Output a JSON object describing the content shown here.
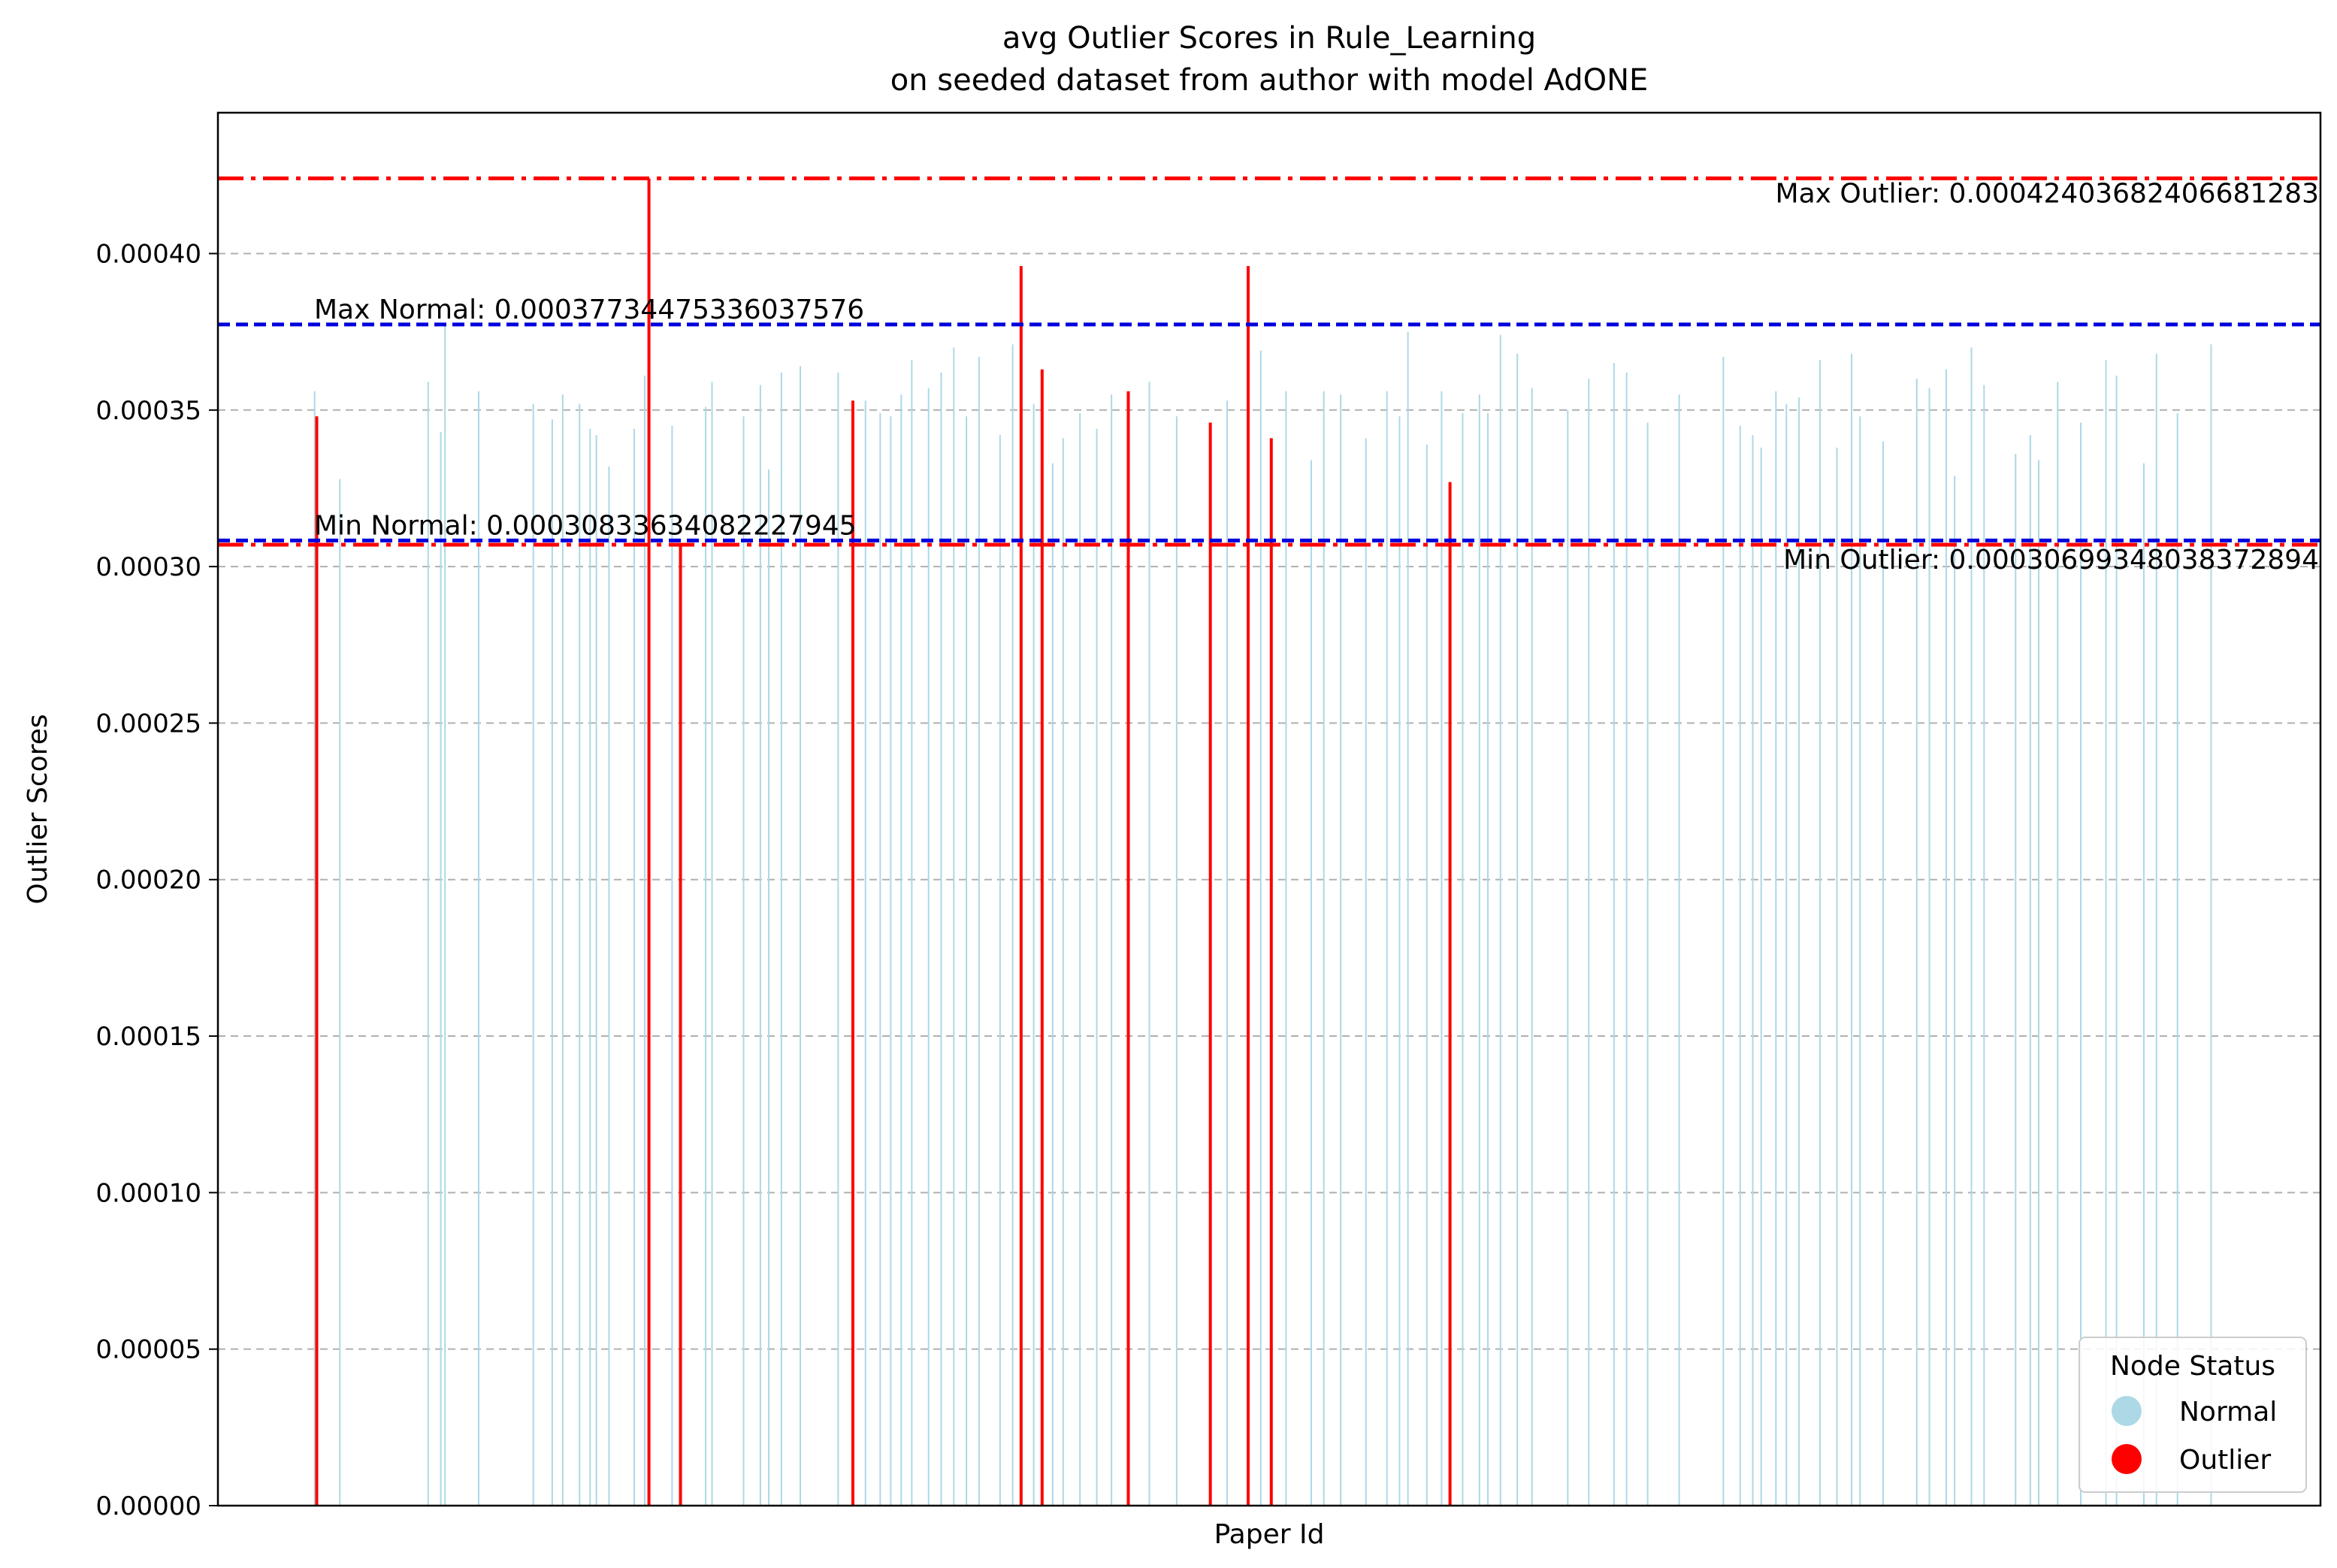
{
  "chart_data": {
    "type": "bar",
    "title_line1": "avg Outlier Scores in Rule_Learning",
    "title_line2": "on seeded dataset from author with model AdONE",
    "xlabel": "Paper Id",
    "ylabel": "Outlier Scores",
    "ylim": [
      0,
      0.000445
    ],
    "yticks": [
      "0.00000",
      "0.00005",
      "0.00010",
      "0.00015",
      "0.00020",
      "0.00025",
      "0.00030",
      "0.00035",
      "0.00040"
    ],
    "grid": "y-dashed",
    "legend": {
      "title": "Node Status",
      "placement": "lower-right",
      "entries": [
        {
          "label": "Normal",
          "color": "#add8e6"
        },
        {
          "label": "Outlier",
          "color": "#ff0000"
        }
      ]
    },
    "reference_lines": [
      {
        "label": "Max Outlier: 0.00042403682406681283",
        "value": 0.0004240368240668128,
        "color": "#ff0000",
        "style": "dashdot"
      },
      {
        "label": "Max Normal: 0.00037734475336037576",
        "value": 0.00037734475336037576,
        "color": "#0000dd",
        "style": "dashed"
      },
      {
        "label": "Min Normal: 0.00030833634082227945",
        "value": 0.00030833634082227945,
        "color": "#0000dd",
        "style": "dashed"
      },
      {
        "label": "Min Outlier: 0.00030699348038372894",
        "value": 0.0003069934803837289,
        "color": "#ff0000",
        "style": "dashdot"
      }
    ],
    "outlier_bars": [
      {
        "pos": 47,
        "value": 0.000348
      },
      {
        "pos": 205,
        "value": 0.000424
      },
      {
        "pos": 220,
        "value": 0.000307
      },
      {
        "pos": 302,
        "value": 0.000353
      },
      {
        "pos": 382,
        "value": 0.000396
      },
      {
        "pos": 392,
        "value": 0.000363
      },
      {
        "pos": 433,
        "value": 0.000356
      },
      {
        "pos": 472,
        "value": 0.000346
      },
      {
        "pos": 490,
        "value": 0.000396
      },
      {
        "pos": 501,
        "value": 0.000341
      },
      {
        "pos": 586,
        "value": 0.000327
      }
    ],
    "normal_bars": [
      {
        "pos": 46,
        "value": 0.000356
      },
      {
        "pos": 58,
        "value": 0.000328
      },
      {
        "pos": 100,
        "value": 0.000359
      },
      {
        "pos": 106,
        "value": 0.000343
      },
      {
        "pos": 108,
        "value": 0.000377
      },
      {
        "pos": 124,
        "value": 0.000356
      },
      {
        "pos": 150,
        "value": 0.000352
      },
      {
        "pos": 159,
        "value": 0.000347
      },
      {
        "pos": 164,
        "value": 0.000355
      },
      {
        "pos": 172,
        "value": 0.000352
      },
      {
        "pos": 177,
        "value": 0.000344
      },
      {
        "pos": 180,
        "value": 0.000342
      },
      {
        "pos": 186,
        "value": 0.000332
      },
      {
        "pos": 198,
        "value": 0.000344
      },
      {
        "pos": 203,
        "value": 0.000361
      },
      {
        "pos": 216,
        "value": 0.000345
      },
      {
        "pos": 232,
        "value": 0.000351
      },
      {
        "pos": 235,
        "value": 0.000359
      },
      {
        "pos": 250,
        "value": 0.000348
      },
      {
        "pos": 258,
        "value": 0.000358
      },
      {
        "pos": 262,
        "value": 0.000331
      },
      {
        "pos": 268,
        "value": 0.000362
      },
      {
        "pos": 277,
        "value": 0.000364
      },
      {
        "pos": 295,
        "value": 0.000362
      },
      {
        "pos": 308,
        "value": 0.000353
      },
      {
        "pos": 315,
        "value": 0.000349
      },
      {
        "pos": 320,
        "value": 0.000348
      },
      {
        "pos": 325,
        "value": 0.000355
      },
      {
        "pos": 330,
        "value": 0.000366
      },
      {
        "pos": 338,
        "value": 0.000357
      },
      {
        "pos": 344,
        "value": 0.000362
      },
      {
        "pos": 350,
        "value": 0.00037
      },
      {
        "pos": 356,
        "value": 0.000348
      },
      {
        "pos": 362,
        "value": 0.000367
      },
      {
        "pos": 372,
        "value": 0.000342
      },
      {
        "pos": 378,
        "value": 0.000371
      },
      {
        "pos": 388,
        "value": 0.000352
      },
      {
        "pos": 397,
        "value": 0.000333
      },
      {
        "pos": 402,
        "value": 0.000341
      },
      {
        "pos": 410,
        "value": 0.000349
      },
      {
        "pos": 418,
        "value": 0.000344
      },
      {
        "pos": 425,
        "value": 0.000355
      },
      {
        "pos": 443,
        "value": 0.000359
      },
      {
        "pos": 456,
        "value": 0.000348
      },
      {
        "pos": 480,
        "value": 0.000353
      },
      {
        "pos": 496,
        "value": 0.000369
      },
      {
        "pos": 508,
        "value": 0.000356
      },
      {
        "pos": 520,
        "value": 0.000334
      },
      {
        "pos": 526,
        "value": 0.000356
      },
      {
        "pos": 534,
        "value": 0.000355
      },
      {
        "pos": 546,
        "value": 0.000341
      },
      {
        "pos": 556,
        "value": 0.000356
      },
      {
        "pos": 562,
        "value": 0.000348
      },
      {
        "pos": 566,
        "value": 0.000375
      },
      {
        "pos": 575,
        "value": 0.000339
      },
      {
        "pos": 582,
        "value": 0.000356
      },
      {
        "pos": 592,
        "value": 0.000349
      },
      {
        "pos": 600,
        "value": 0.000355
      },
      {
        "pos": 604,
        "value": 0.000349
      },
      {
        "pos": 610,
        "value": 0.000374
      },
      {
        "pos": 618,
        "value": 0.000368
      },
      {
        "pos": 625,
        "value": 0.000357
      },
      {
        "pos": 642,
        "value": 0.00035
      },
      {
        "pos": 652,
        "value": 0.00036
      },
      {
        "pos": 664,
        "value": 0.000365
      },
      {
        "pos": 670,
        "value": 0.000362
      },
      {
        "pos": 680,
        "value": 0.000346
      },
      {
        "pos": 695,
        "value": 0.000355
      },
      {
        "pos": 716,
        "value": 0.000367
      },
      {
        "pos": 724,
        "value": 0.000345
      },
      {
        "pos": 730,
        "value": 0.000342
      },
      {
        "pos": 734,
        "value": 0.000338
      },
      {
        "pos": 741,
        "value": 0.000356
      },
      {
        "pos": 746,
        "value": 0.000352
      },
      {
        "pos": 752,
        "value": 0.000354
      },
      {
        "pos": 762,
        "value": 0.000366
      },
      {
        "pos": 770,
        "value": 0.000338
      },
      {
        "pos": 777,
        "value": 0.000368
      },
      {
        "pos": 781,
        "value": 0.000348
      },
      {
        "pos": 792,
        "value": 0.00034
      },
      {
        "pos": 808,
        "value": 0.00036
      },
      {
        "pos": 814,
        "value": 0.000357
      },
      {
        "pos": 822,
        "value": 0.000363
      },
      {
        "pos": 826,
        "value": 0.000329
      },
      {
        "pos": 834,
        "value": 0.00037
      },
      {
        "pos": 840,
        "value": 0.000358
      },
      {
        "pos": 855,
        "value": 0.000336
      },
      {
        "pos": 862,
        "value": 0.000342
      },
      {
        "pos": 866,
        "value": 0.000334
      },
      {
        "pos": 875,
        "value": 0.000359
      },
      {
        "pos": 886,
        "value": 0.000346
      },
      {
        "pos": 898,
        "value": 0.000366
      },
      {
        "pos": 903,
        "value": 0.000361
      },
      {
        "pos": 916,
        "value": 0.000333
      },
      {
        "pos": 922,
        "value": 0.000368
      },
      {
        "pos": 932,
        "value": 0.000349
      },
      {
        "pos": 948,
        "value": 0.000371
      }
    ]
  }
}
